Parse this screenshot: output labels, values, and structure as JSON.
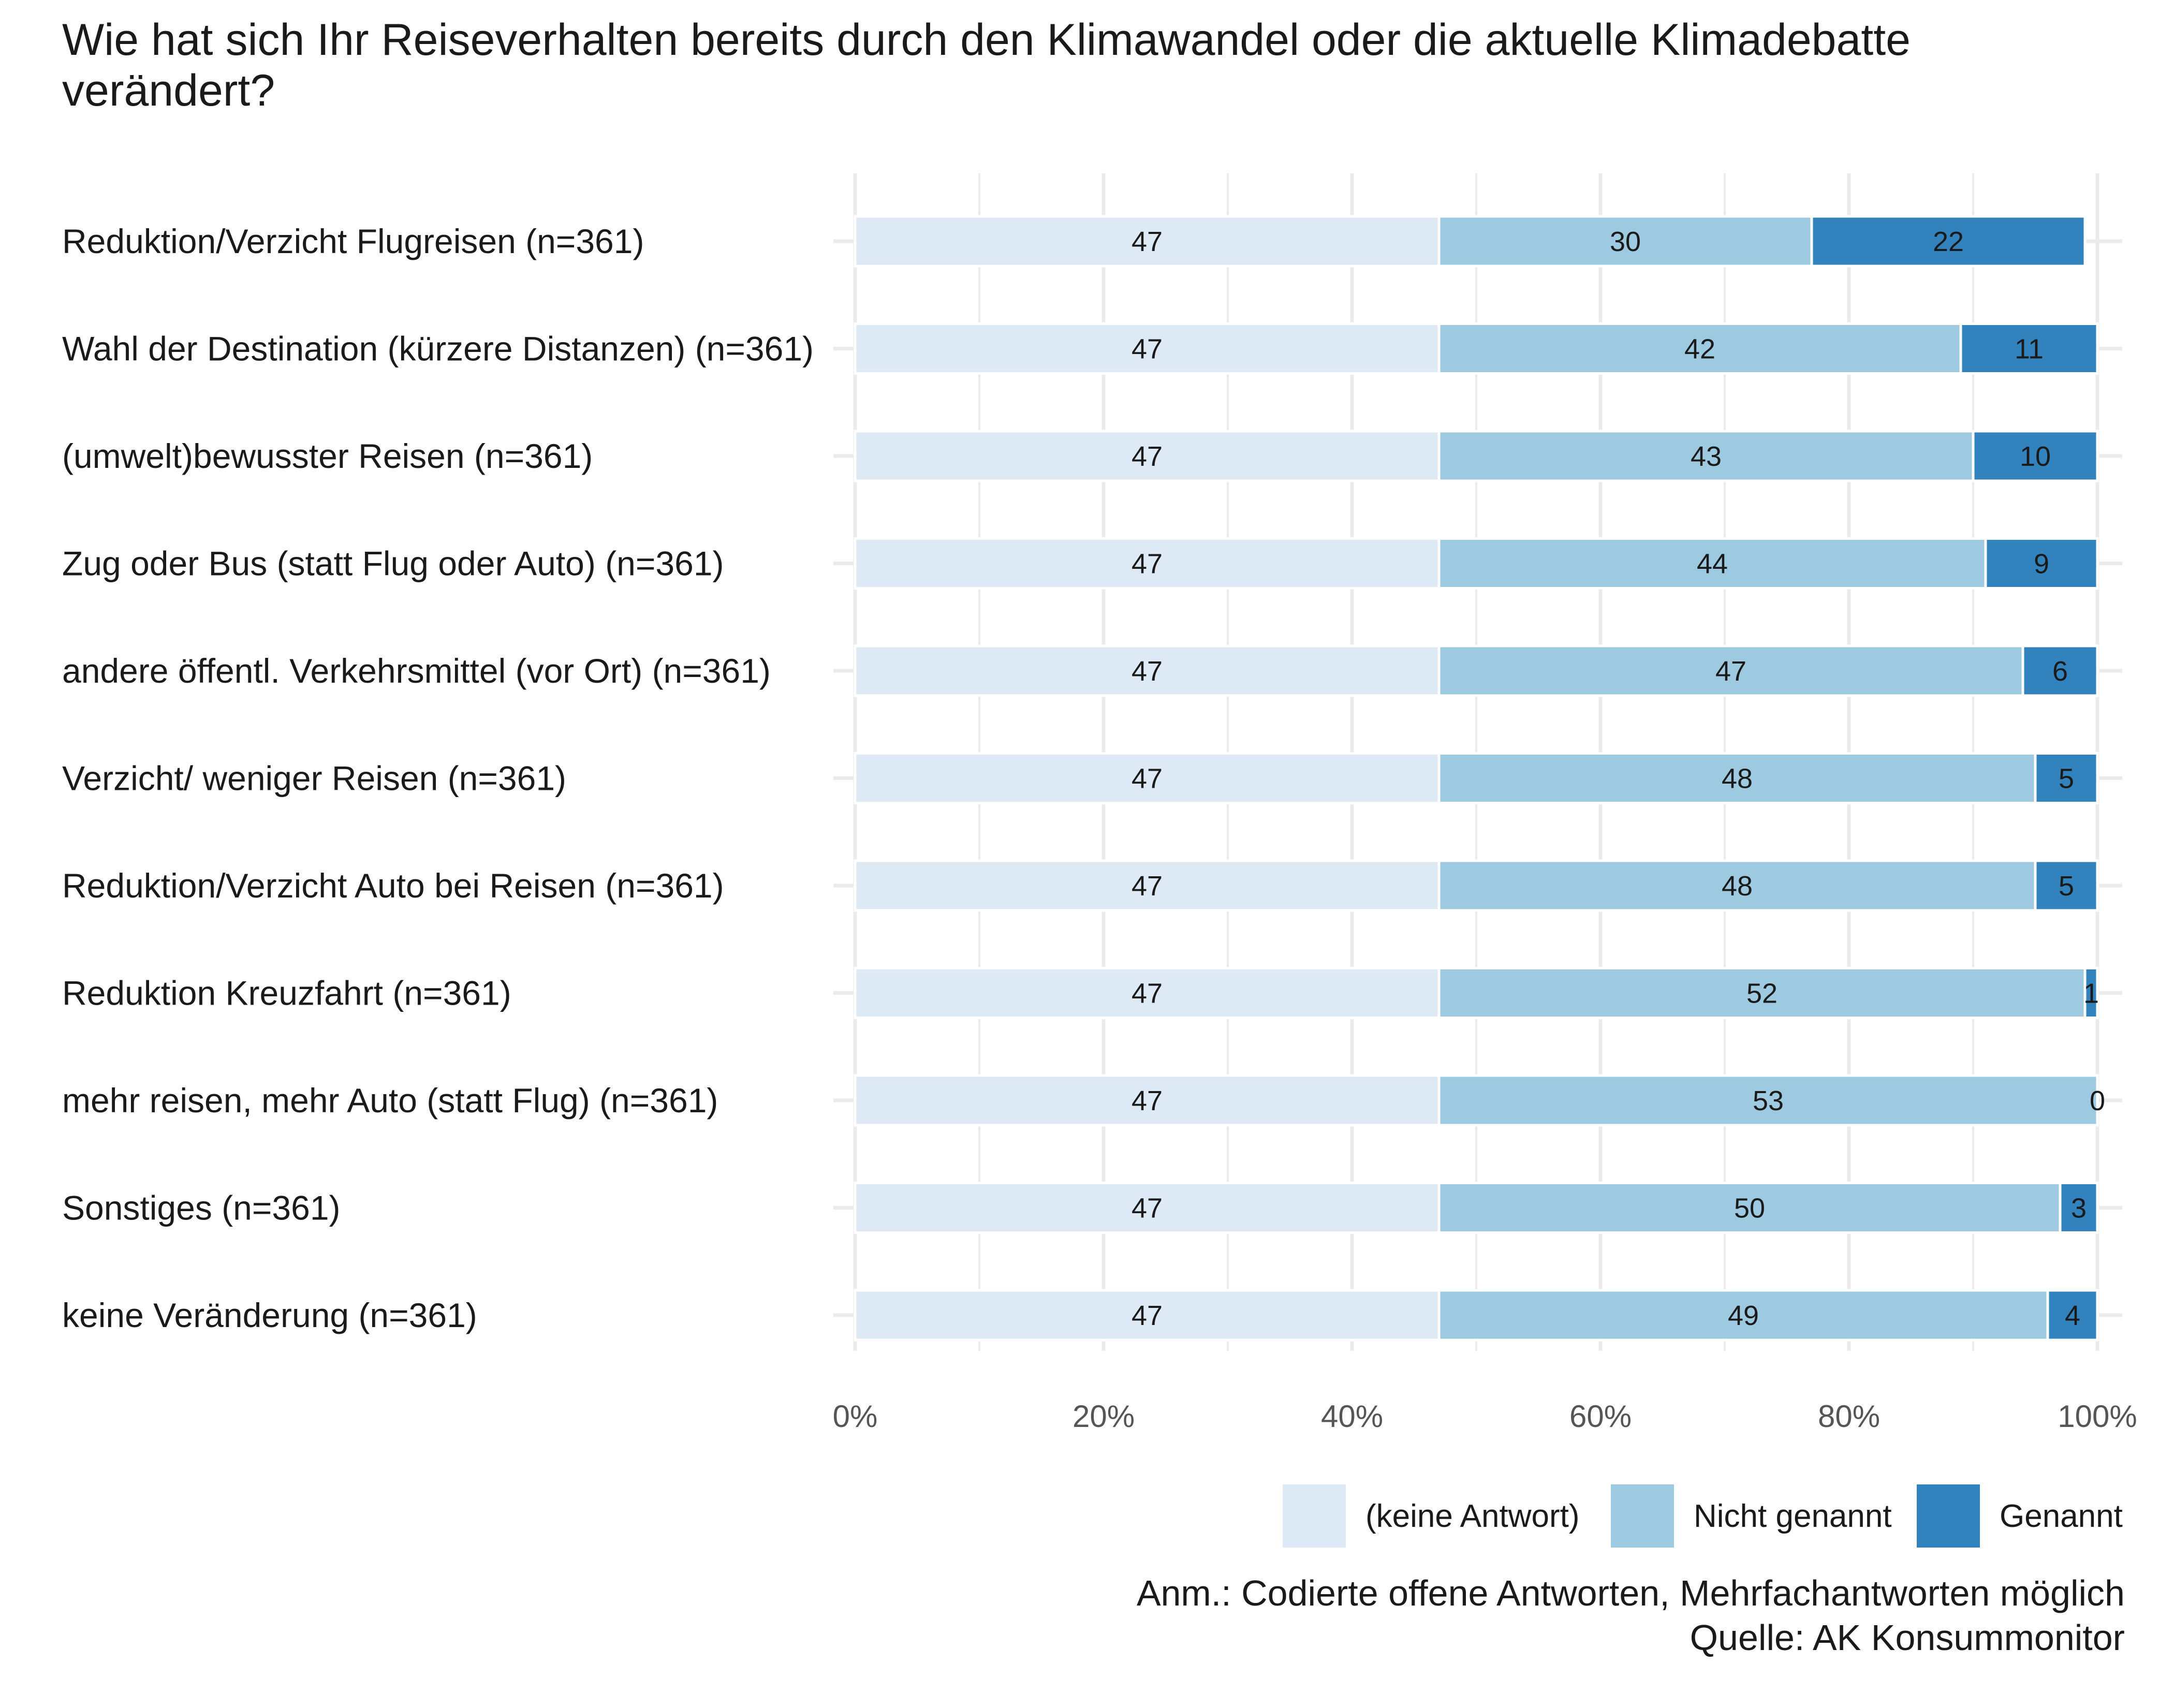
{
  "chart_data": {
    "type": "bar",
    "orientation": "horizontal",
    "stacked": true,
    "title": "Wie hat sich Ihr Reiseverhalten bereits durch den Klimawandel oder die aktuelle Klimadebatte verändert?",
    "categories": [
      "Reduktion/Verzicht Flugreisen (n=361)",
      "Wahl der Destination (kürzere Distanzen) (n=361)",
      "(umwelt)bewusster Reisen (n=361)",
      "Zug oder Bus (statt Flug oder Auto) (n=361)",
      "andere öffentl. Verkehrsmittel (vor Ort) (n=361)",
      "Verzicht/ weniger Reisen (n=361)",
      "Reduktion/Verzicht Auto bei Reisen (n=361)",
      "Reduktion Kreuzfahrt (n=361)",
      "mehr reisen, mehr Auto (statt Flug) (n=361)",
      "Sonstiges (n=361)",
      "keine Veränderung (n=361)"
    ],
    "series": [
      {
        "name": "(keine Antwort)",
        "color": "#dde9f5",
        "values": [
          47,
          47,
          47,
          47,
          47,
          47,
          47,
          47,
          47,
          47,
          47
        ]
      },
      {
        "name": "Nicht genannt",
        "color": "#9ecae1",
        "values": [
          30,
          42,
          43,
          44,
          47,
          48,
          48,
          52,
          53,
          50,
          49
        ]
      },
      {
        "name": "Genannt",
        "color": "#3182bd",
        "values": [
          22,
          11,
          10,
          9,
          6,
          5,
          5,
          1,
          0,
          3,
          4
        ]
      }
    ],
    "xlim": [
      0,
      100
    ],
    "x_ticks": [
      "0%",
      "20%",
      "40%",
      "60%",
      "80%",
      "100%"
    ],
    "legend_position": "bottom-right",
    "grid": true
  },
  "note": {
    "line1": "Anm.: Codierte offene Antworten, Mehrfachantworten möglich",
    "line2": "Quelle: AK Konsummonitor"
  }
}
